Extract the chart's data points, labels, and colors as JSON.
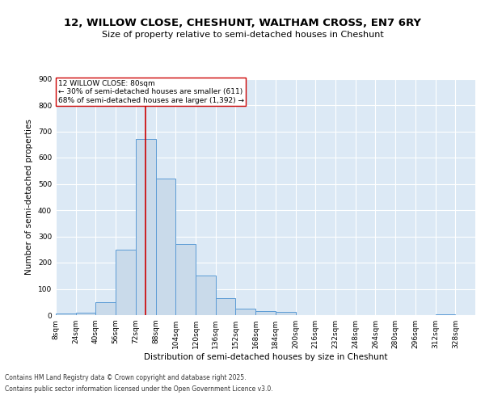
{
  "title_line1": "12, WILLOW CLOSE, CHESHUNT, WALTHAM CROSS, EN7 6RY",
  "title_line2": "Size of property relative to semi-detached houses in Cheshunt",
  "xlabel": "Distribution of semi-detached houses by size in Cheshunt",
  "ylabel": "Number of semi-detached properties",
  "bins": [
    8,
    24,
    40,
    56,
    72,
    88,
    104,
    120,
    136,
    152,
    168,
    184,
    200,
    216,
    232,
    248,
    264,
    280,
    296,
    312,
    328
  ],
  "counts": [
    5,
    10,
    50,
    250,
    670,
    520,
    270,
    150,
    65,
    25,
    15,
    12,
    0,
    0,
    0,
    0,
    0,
    0,
    0,
    3
  ],
  "bar_color": "#c9daea",
  "bar_edge_color": "#5b9bd5",
  "background_color": "#dce9f5",
  "grid_color": "#ffffff",
  "ref_line_x": 80,
  "ref_line_color": "#cc0000",
  "annotation_title": "12 WILLOW CLOSE: 80sqm",
  "annotation_line1": "← 30% of semi-detached houses are smaller (611)",
  "annotation_line2": "68% of semi-detached houses are larger (1,392) →",
  "annotation_box_color": "#ffffff",
  "annotation_box_edge": "#cc0000",
  "ylim": [
    0,
    900
  ],
  "yticks": [
    0,
    100,
    200,
    300,
    400,
    500,
    600,
    700,
    800,
    900
  ],
  "footer_line1": "Contains HM Land Registry data © Crown copyright and database right 2025.",
  "footer_line2": "Contains public sector information licensed under the Open Government Licence v3.0.",
  "title_fontsize": 9.5,
  "subtitle_fontsize": 8,
  "axis_label_fontsize": 7.5,
  "tick_fontsize": 6.5,
  "annotation_fontsize": 6.5,
  "footer_fontsize": 5.5
}
